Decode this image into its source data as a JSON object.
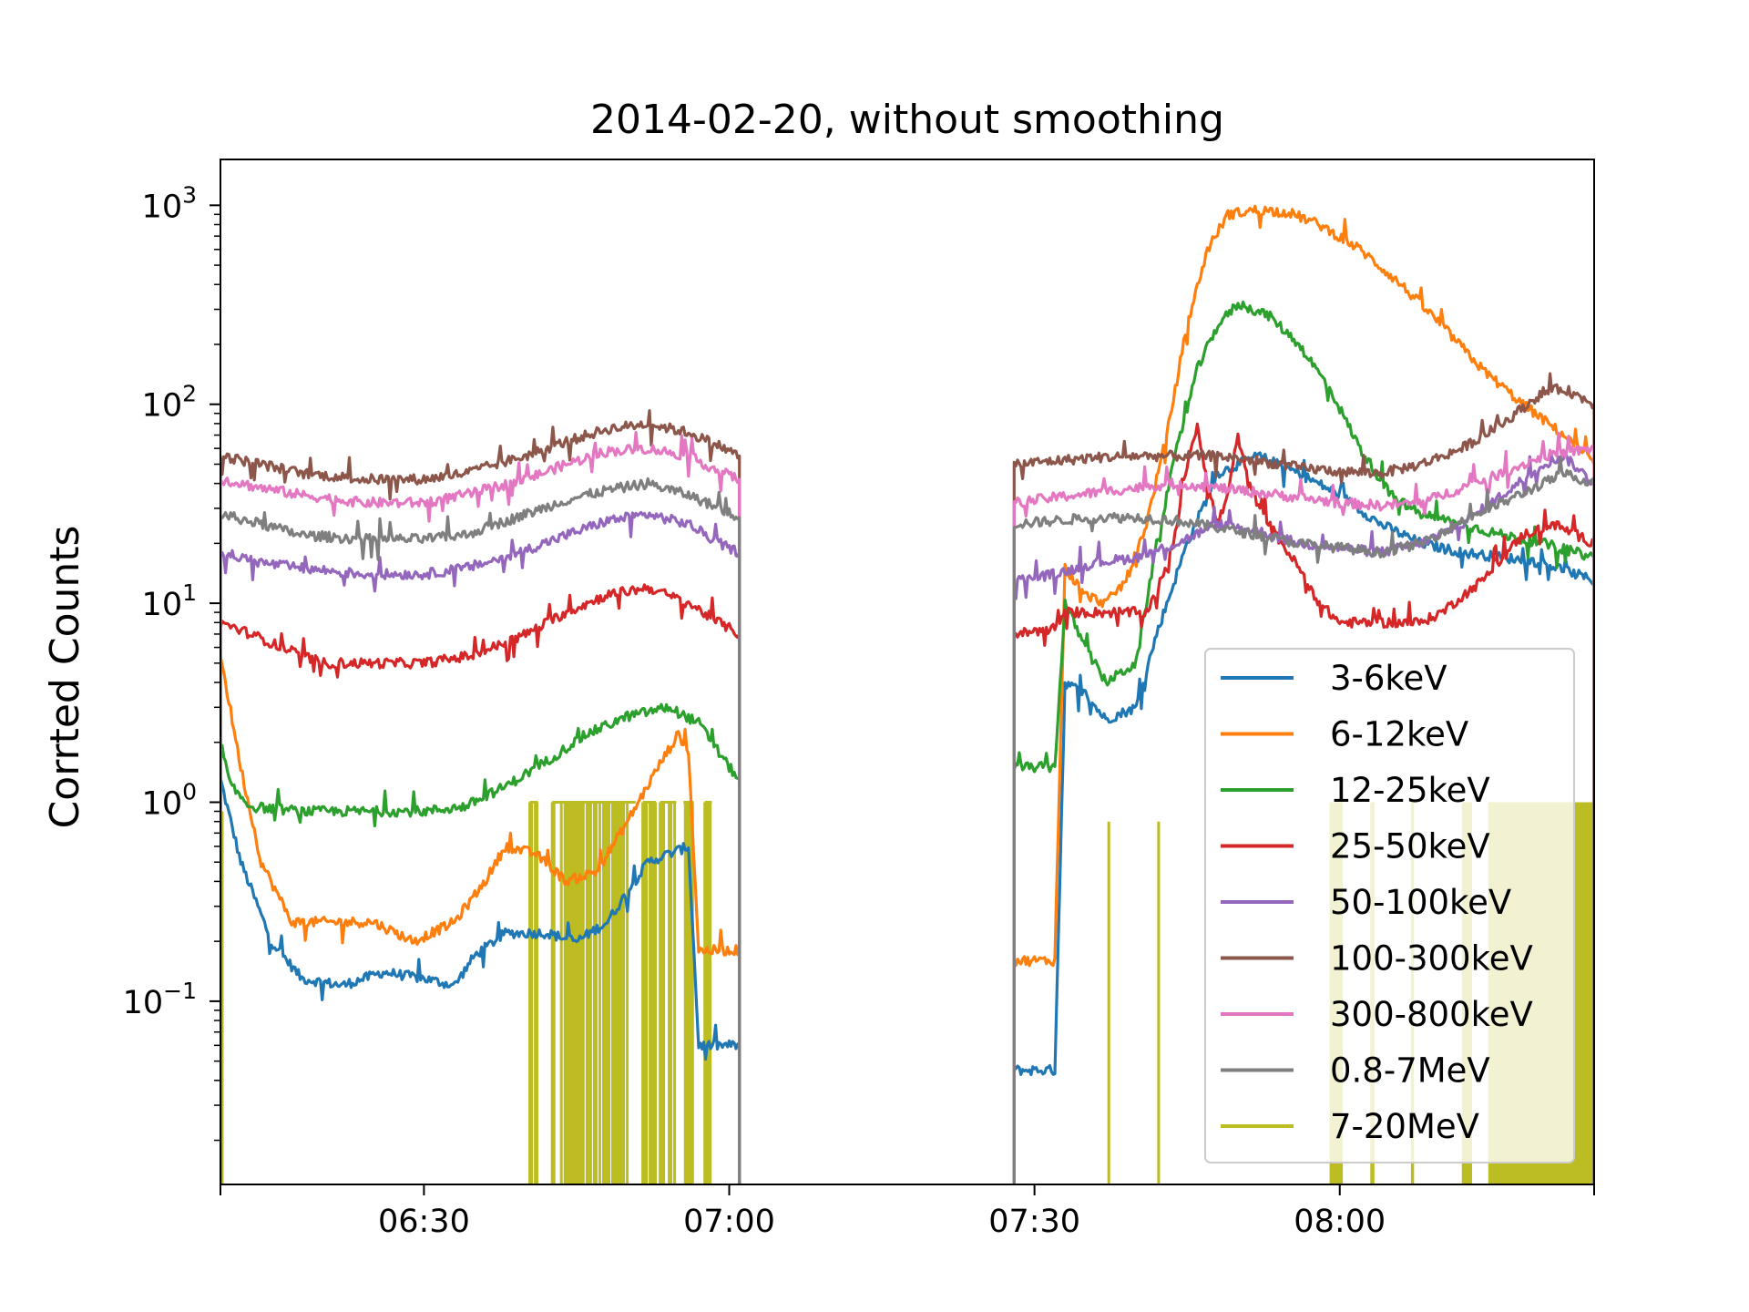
{
  "chart_data": {
    "type": "line",
    "title": "2014-02-20, without smoothing",
    "xlabel": "",
    "ylabel": "Corrted Counts",
    "yscale": "log",
    "ylim": [
      0.012,
      1700
    ],
    "xlim": [
      "06:10",
      "08:25"
    ],
    "x_ticks": [
      {
        "label": "06:30",
        "value": "06:30"
      },
      {
        "label": "07:00",
        "value": "07:00"
      },
      {
        "label": "07:30",
        "value": "07:30"
      },
      {
        "label": "08:00",
        "value": "08:00"
      }
    ],
    "y_ticks": [
      {
        "base": "10",
        "exp": "3",
        "value": 1000
      },
      {
        "base": "10",
        "exp": "2",
        "value": 100
      },
      {
        "base": "10",
        "exp": "1",
        "value": 10
      },
      {
        "base": "10",
        "exp": "0",
        "value": 1
      },
      {
        "base": "10",
        "exp": "−1",
        "value": 0.1
      }
    ],
    "grid": false,
    "legend_position": "lower-right",
    "data_gap": [
      "07:01",
      "07:28"
    ],
    "series": [
      {
        "name": "3-6keV",
        "color": "#1f77b4",
        "points": [
          [
            "06:10",
            1.3
          ],
          [
            "06:12",
            0.5
          ],
          [
            "06:15",
            0.2
          ],
          [
            "06:18",
            0.13
          ],
          [
            "06:22",
            0.12
          ],
          [
            "06:26",
            0.14
          ],
          [
            "06:30",
            0.13
          ],
          [
            "06:33",
            0.12
          ],
          [
            "06:35",
            0.17
          ],
          [
            "06:38",
            0.22
          ],
          [
            "06:42",
            0.22
          ],
          [
            "06:45",
            0.2
          ],
          [
            "06:48",
            0.25
          ],
          [
            "06:52",
            0.5
          ],
          [
            "06:56",
            0.6
          ],
          [
            "06:57",
            0.06
          ],
          [
            "07:01",
            0.06
          ],
          [
            "07:28",
            0.045
          ],
          [
            "07:32",
            0.045
          ],
          [
            "07:33",
            4
          ],
          [
            "07:35",
            3.5
          ],
          [
            "07:37",
            2.6
          ],
          [
            "07:40",
            3
          ],
          [
            "07:42",
            7
          ],
          [
            "07:45",
            20
          ],
          [
            "07:48",
            45
          ],
          [
            "07:52",
            55
          ],
          [
            "07:56",
            45
          ],
          [
            "08:00",
            35
          ],
          [
            "08:04",
            25
          ],
          [
            "08:08",
            20
          ],
          [
            "08:12",
            18
          ],
          [
            "08:16",
            17
          ],
          [
            "08:20",
            16
          ],
          [
            "08:25",
            13
          ]
        ]
      },
      {
        "name": "6-12keV",
        "color": "#ff7f0e",
        "points": [
          [
            "06:10",
            5.5
          ],
          [
            "06:12",
            1.5
          ],
          [
            "06:14",
            0.5
          ],
          [
            "06:17",
            0.25
          ],
          [
            "06:21",
            0.25
          ],
          [
            "06:25",
            0.25
          ],
          [
            "06:29",
            0.2
          ],
          [
            "06:33",
            0.25
          ],
          [
            "06:36",
            0.4
          ],
          [
            "06:38",
            0.6
          ],
          [
            "06:41",
            0.55
          ],
          [
            "06:44",
            0.4
          ],
          [
            "06:47",
            0.45
          ],
          [
            "06:50",
            0.8
          ],
          [
            "06:53",
            1.5
          ],
          [
            "06:55",
            2.2
          ],
          [
            "06:56",
            1.8
          ],
          [
            "06:57",
            0.18
          ],
          [
            "07:01",
            0.18
          ],
          [
            "07:28",
            0.16
          ],
          [
            "07:32",
            0.16
          ],
          [
            "07:33",
            15
          ],
          [
            "07:35",
            11
          ],
          [
            "07:37",
            10
          ],
          [
            "07:39",
            13
          ],
          [
            "07:41",
            25
          ],
          [
            "07:43",
            70
          ],
          [
            "07:45",
            250
          ],
          [
            "07:47",
            600
          ],
          [
            "07:49",
            900
          ],
          [
            "07:52",
            950
          ],
          [
            "07:55",
            920
          ],
          [
            "07:58",
            800
          ],
          [
            "08:02",
            600
          ],
          [
            "08:06",
            400
          ],
          [
            "08:10",
            250
          ],
          [
            "08:14",
            150
          ],
          [
            "08:18",
            100
          ],
          [
            "08:22",
            70
          ],
          [
            "08:25",
            50
          ]
        ]
      },
      {
        "name": "12-25keV",
        "color": "#2ca02c",
        "points": [
          [
            "06:10",
            2
          ],
          [
            "06:11",
            1.2
          ],
          [
            "06:13",
            0.95
          ],
          [
            "06:18",
            0.9
          ],
          [
            "06:22",
            0.9
          ],
          [
            "06:26",
            0.9
          ],
          [
            "06:30",
            0.9
          ],
          [
            "06:34",
            0.95
          ],
          [
            "06:38",
            1.2
          ],
          [
            "06:42",
            1.6
          ],
          [
            "06:46",
            2.2
          ],
          [
            "06:50",
            2.7
          ],
          [
            "06:54",
            3
          ],
          [
            "06:57",
            2.5
          ],
          [
            "07:00",
            1.5
          ],
          [
            "07:01",
            1.3
          ],
          [
            "07:28",
            1.5
          ],
          [
            "07:32",
            1.5
          ],
          [
            "07:33",
            10
          ],
          [
            "07:35",
            6
          ],
          [
            "07:37",
            4
          ],
          [
            "07:40",
            5
          ],
          [
            "07:42",
            20
          ],
          [
            "07:44",
            60
          ],
          [
            "07:46",
            150
          ],
          [
            "07:48",
            250
          ],
          [
            "07:50",
            320
          ],
          [
            "07:53",
            280
          ],
          [
            "07:56",
            200
          ],
          [
            "07:59",
            120
          ],
          [
            "08:02",
            60
          ],
          [
            "08:05",
            35
          ],
          [
            "08:08",
            28
          ],
          [
            "08:12",
            25
          ],
          [
            "08:16",
            22
          ],
          [
            "08:20",
            20
          ],
          [
            "08:25",
            17
          ]
        ]
      },
      {
        "name": "25-50keV",
        "color": "#d62728",
        "points": [
          [
            "06:10",
            8
          ],
          [
            "06:13",
            7
          ],
          [
            "06:16",
            6
          ],
          [
            "06:20",
            5
          ],
          [
            "06:25",
            5
          ],
          [
            "06:30",
            5
          ],
          [
            "06:35",
            5.5
          ],
          [
            "06:40",
            7
          ],
          [
            "06:44",
            9
          ],
          [
            "06:48",
            11
          ],
          [
            "06:52",
            12
          ],
          [
            "06:56",
            10
          ],
          [
            "06:59",
            8
          ],
          [
            "07:01",
            7
          ],
          [
            "07:28",
            7
          ],
          [
            "07:32",
            7.5
          ],
          [
            "07:33",
            9
          ],
          [
            "07:38",
            9
          ],
          [
            "07:41",
            9
          ],
          [
            "07:43",
            15
          ],
          [
            "07:44",
            25
          ],
          [
            "07:45",
            50
          ],
          [
            "07:46",
            80
          ],
          [
            "07:47",
            40
          ],
          [
            "07:48",
            25
          ],
          [
            "07:49",
            35
          ],
          [
            "07:50",
            70
          ],
          [
            "07:51",
            40
          ],
          [
            "07:53",
            25
          ],
          [
            "07:56",
            15
          ],
          [
            "07:58",
            10
          ],
          [
            "08:00",
            8
          ],
          [
            "08:04",
            8
          ],
          [
            "08:08",
            8
          ],
          [
            "08:10",
            9
          ],
          [
            "08:14",
            13
          ],
          [
            "08:18",
            22
          ],
          [
            "08:21",
            25
          ],
          [
            "08:25",
            20
          ]
        ]
      },
      {
        "name": "50-100keV",
        "color": "#9467bd",
        "points": [
          [
            "06:10",
            18
          ],
          [
            "06:14",
            16
          ],
          [
            "06:18",
            15
          ],
          [
            "06:24",
            14
          ],
          [
            "06:30",
            14
          ],
          [
            "06:34",
            15
          ],
          [
            "06:38",
            17
          ],
          [
            "06:44",
            22
          ],
          [
            "06:48",
            26
          ],
          [
            "06:52",
            28
          ],
          [
            "06:56",
            25
          ],
          [
            "06:59",
            20
          ],
          [
            "07:01",
            18
          ],
          [
            "07:28",
            13
          ],
          [
            "07:32",
            14
          ],
          [
            "07:36",
            16
          ],
          [
            "07:40",
            17
          ],
          [
            "07:44",
            20
          ],
          [
            "07:48",
            25
          ],
          [
            "07:52",
            23
          ],
          [
            "07:56",
            20
          ],
          [
            "08:00",
            19
          ],
          [
            "08:04",
            18
          ],
          [
            "08:08",
            20
          ],
          [
            "08:12",
            25
          ],
          [
            "08:16",
            35
          ],
          [
            "08:20",
            50
          ],
          [
            "08:22",
            55
          ],
          [
            "08:25",
            40
          ]
        ]
      },
      {
        "name": "100-300keV",
        "color": "#8c564b",
        "points": [
          [
            "06:10",
            55
          ],
          [
            "06:14",
            50
          ],
          [
            "06:18",
            45
          ],
          [
            "06:24",
            42
          ],
          [
            "06:30",
            42
          ],
          [
            "06:34",
            45
          ],
          [
            "06:40",
            55
          ],
          [
            "06:44",
            65
          ],
          [
            "06:48",
            75
          ],
          [
            "06:52",
            80
          ],
          [
            "06:56",
            72
          ],
          [
            "06:59",
            62
          ],
          [
            "07:01",
            55
          ],
          [
            "07:28",
            50
          ],
          [
            "07:32",
            52
          ],
          [
            "07:36",
            54
          ],
          [
            "07:40",
            55
          ],
          [
            "07:44",
            55
          ],
          [
            "07:48",
            55
          ],
          [
            "07:52",
            52
          ],
          [
            "07:56",
            48
          ],
          [
            "08:00",
            46
          ],
          [
            "08:04",
            45
          ],
          [
            "08:08",
            50
          ],
          [
            "08:12",
            60
          ],
          [
            "08:16",
            80
          ],
          [
            "08:20",
            115
          ],
          [
            "08:22",
            120
          ],
          [
            "08:25",
            100
          ]
        ]
      },
      {
        "name": "300-800keV",
        "color": "#e377c2",
        "points": [
          [
            "06:10",
            42
          ],
          [
            "06:14",
            38
          ],
          [
            "06:18",
            35
          ],
          [
            "06:24",
            32
          ],
          [
            "06:30",
            32
          ],
          [
            "06:34",
            35
          ],
          [
            "06:40",
            42
          ],
          [
            "06:44",
            50
          ],
          [
            "06:48",
            58
          ],
          [
            "06:52",
            60
          ],
          [
            "06:56",
            55
          ],
          [
            "06:59",
            46
          ],
          [
            "07:01",
            42
          ],
          [
            "07:28",
            32
          ],
          [
            "07:32",
            34
          ],
          [
            "07:36",
            36
          ],
          [
            "07:40",
            38
          ],
          [
            "07:44",
            40
          ],
          [
            "07:48",
            38
          ],
          [
            "07:52",
            36
          ],
          [
            "07:56",
            34
          ],
          [
            "08:00",
            32
          ],
          [
            "08:04",
            31
          ],
          [
            "08:08",
            32
          ],
          [
            "08:12",
            38
          ],
          [
            "08:16",
            45
          ],
          [
            "08:20",
            55
          ],
          [
            "08:25",
            60
          ]
        ]
      },
      {
        "name": "0.8-7MeV",
        "color": "#7f7f7f",
        "points": [
          [
            "06:10",
            28
          ],
          [
            "06:14",
            25
          ],
          [
            "06:18",
            22
          ],
          [
            "06:24",
            21
          ],
          [
            "06:30",
            21
          ],
          [
            "06:34",
            22
          ],
          [
            "06:40",
            28
          ],
          [
            "06:44",
            33
          ],
          [
            "06:48",
            37
          ],
          [
            "06:52",
            40
          ],
          [
            "06:56",
            35
          ],
          [
            "06:59",
            30
          ],
          [
            "07:01",
            27
          ],
          [
            "07:28",
            25
          ],
          [
            "07:32",
            26
          ],
          [
            "07:36",
            27
          ],
          [
            "07:40",
            27
          ],
          [
            "07:44",
            26
          ],
          [
            "07:48",
            24
          ],
          [
            "07:52",
            22
          ],
          [
            "07:56",
            20
          ],
          [
            "08:00",
            19
          ],
          [
            "08:04",
            18
          ],
          [
            "08:08",
            20
          ],
          [
            "08:12",
            26
          ],
          [
            "08:16",
            32
          ],
          [
            "08:20",
            40
          ],
          [
            "08:22",
            45
          ],
          [
            "08:25",
            40
          ]
        ]
      },
      {
        "name": "7-20MeV",
        "color": "#bcbd22",
        "points": []
      }
    ]
  }
}
